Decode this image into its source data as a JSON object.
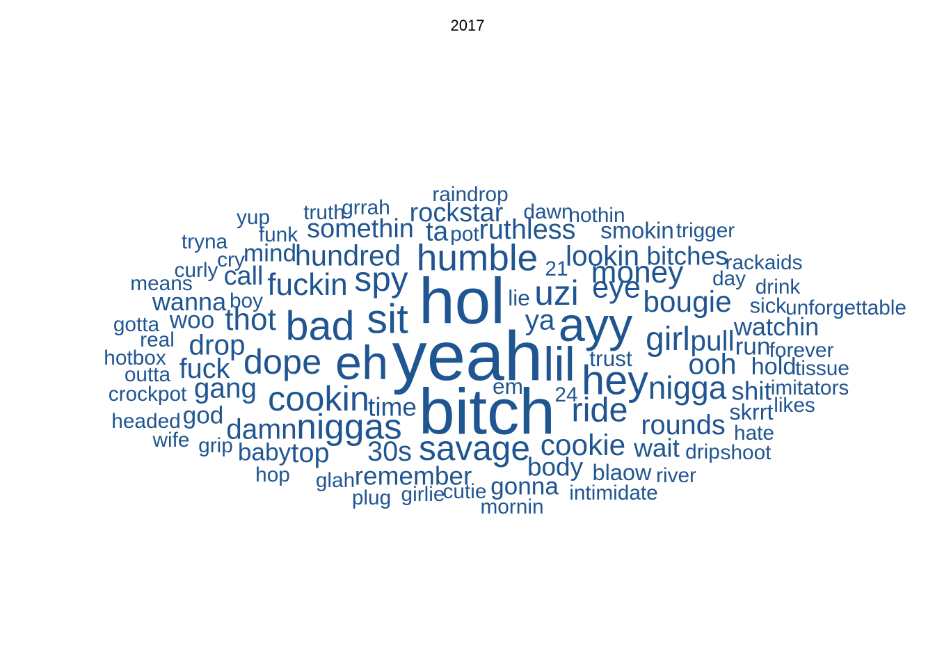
{
  "chart_data": {
    "type": "wordcloud",
    "title": "2017",
    "color": "#1f5591",
    "words": [
      {
        "text": "yeah",
        "weight": 100
      },
      {
        "text": "hol",
        "weight": 92
      },
      {
        "text": "bitch",
        "weight": 92
      },
      {
        "text": "eh",
        "weight": 65
      },
      {
        "text": "ayy",
        "weight": 65
      },
      {
        "text": "lil",
        "weight": 65
      },
      {
        "text": "bad",
        "weight": 55
      },
      {
        "text": "sit",
        "weight": 55
      },
      {
        "text": "hey",
        "weight": 55
      },
      {
        "text": "humble",
        "weight": 48
      },
      {
        "text": "niggas",
        "weight": 46
      },
      {
        "text": "cookin",
        "weight": 45
      },
      {
        "text": "dope",
        "weight": 45
      },
      {
        "text": "spy",
        "weight": 44
      },
      {
        "text": "uzi",
        "weight": 44
      },
      {
        "text": "savage",
        "weight": 44
      },
      {
        "text": "ride",
        "weight": 43
      },
      {
        "text": "girl",
        "weight": 42
      },
      {
        "text": "nigga",
        "weight": 40
      },
      {
        "text": "thot",
        "weight": 38
      },
      {
        "text": "fuckin",
        "weight": 38
      },
      {
        "text": "money",
        "weight": 38
      },
      {
        "text": "eye",
        "weight": 37
      },
      {
        "text": "cookie",
        "weight": 36
      },
      {
        "text": "bougie",
        "weight": 36
      },
      {
        "text": "hundred",
        "weight": 35
      },
      {
        "text": "ooh",
        "weight": 35
      },
      {
        "text": "lookin",
        "weight": 34
      },
      {
        "text": "ya",
        "weight": 34
      },
      {
        "text": "pull",
        "weight": 34
      },
      {
        "text": "damn",
        "weight": 34
      },
      {
        "text": "drop",
        "weight": 34
      },
      {
        "text": "gang",
        "weight": 34
      },
      {
        "text": "rounds",
        "weight": 33
      },
      {
        "text": "fuck",
        "weight": 33
      },
      {
        "text": "30s",
        "weight": 33
      },
      {
        "text": "ruthless",
        "weight": 33
      },
      {
        "text": "somethin",
        "weight": 31
      },
      {
        "text": "rockstar",
        "weight": 31
      },
      {
        "text": "ta",
        "weight": 32
      },
      {
        "text": "top",
        "weight": 33
      },
      {
        "text": "call",
        "weight": 31
      },
      {
        "text": "time",
        "weight": 30
      },
      {
        "text": "remember",
        "weight": 30
      },
      {
        "text": "wait",
        "weight": 30
      },
      {
        "text": "body",
        "weight": 30
      },
      {
        "text": "bitches",
        "weight": 30
      },
      {
        "text": "watchin",
        "weight": 29
      },
      {
        "text": "shit",
        "weight": 30
      },
      {
        "text": "wanna",
        "weight": 29
      },
      {
        "text": "mind",
        "weight": 28
      },
      {
        "text": "baby",
        "weight": 28
      },
      {
        "text": "god",
        "weight": 28
      },
      {
        "text": "gonna",
        "weight": 28
      },
      {
        "text": "woo",
        "weight": 28
      },
      {
        "text": "run",
        "weight": 28
      },
      {
        "text": "hold",
        "weight": 27
      },
      {
        "text": "smokin",
        "weight": 26
      },
      {
        "text": "blaow",
        "weight": 25
      },
      {
        "text": "skrrt",
        "weight": 25
      },
      {
        "text": "trust",
        "weight": 24
      },
      {
        "text": "lie",
        "weight": 24
      },
      {
        "text": "em",
        "weight": 24
      },
      {
        "text": "raindrop",
        "weight": 22
      },
      {
        "text": "dawn",
        "weight": 22
      },
      {
        "text": "nothin",
        "weight": 22
      },
      {
        "text": "trigger",
        "weight": 22
      },
      {
        "text": "truth",
        "weight": 22
      },
      {
        "text": "grrah",
        "weight": 22
      },
      {
        "text": "yup",
        "weight": 22
      },
      {
        "text": "funk",
        "weight": 22
      },
      {
        "text": "pot",
        "weight": 22
      },
      {
        "text": "tryna",
        "weight": 22
      },
      {
        "text": "cry",
        "weight": 22
      },
      {
        "text": "rackaids",
        "weight": 22
      },
      {
        "text": "curly",
        "weight": 22
      },
      {
        "text": "21",
        "weight": 22
      },
      {
        "text": "day",
        "weight": 22
      },
      {
        "text": "means",
        "weight": 22
      },
      {
        "text": "drink",
        "weight": 22
      },
      {
        "text": "boy",
        "weight": 22
      },
      {
        "text": "sick",
        "weight": 23
      },
      {
        "text": "unforgettable",
        "weight": 22
      },
      {
        "text": "gotta",
        "weight": 22
      },
      {
        "text": "real",
        "weight": 22
      },
      {
        "text": "forever",
        "weight": 22
      },
      {
        "text": "hotbox",
        "weight": 22
      },
      {
        "text": "outta",
        "weight": 22
      },
      {
        "text": "tissue",
        "weight": 22
      },
      {
        "text": "imitators",
        "weight": 22
      },
      {
        "text": "crockpot",
        "weight": 22
      },
      {
        "text": "24",
        "weight": 22
      },
      {
        "text": "likes",
        "weight": 22
      },
      {
        "text": "headed",
        "weight": 22
      },
      {
        "text": "hate",
        "weight": 22
      },
      {
        "text": "wife",
        "weight": 22
      },
      {
        "text": "grip",
        "weight": 22
      },
      {
        "text": "drip",
        "weight": 22
      },
      {
        "text": "shoot",
        "weight": 22
      },
      {
        "text": "hop",
        "weight": 22
      },
      {
        "text": "river",
        "weight": 22
      },
      {
        "text": "glah",
        "weight": 22
      },
      {
        "text": "cutie",
        "weight": 22
      },
      {
        "text": "intimidate",
        "weight": 22
      },
      {
        "text": "plug",
        "weight": 22
      },
      {
        "text": "girlie",
        "weight": 22
      },
      {
        "text": "mornin",
        "weight": 22
      }
    ]
  }
}
